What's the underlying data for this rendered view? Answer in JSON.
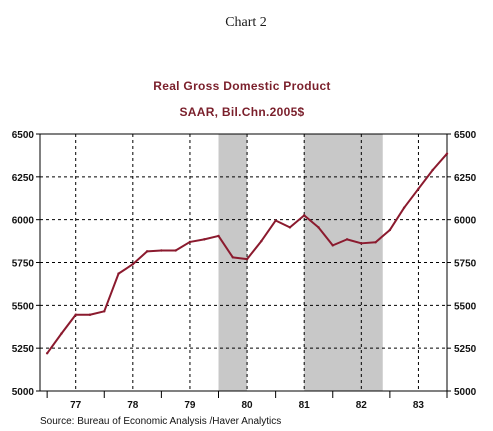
{
  "page": {
    "heading": "Chart 2",
    "source": "Source:  Bureau of Economic Analysis /Haver Analytics"
  },
  "chart_data": {
    "type": "line",
    "title": "Real Gross Domestic Product",
    "subtitle": "SAAR, Bil.Chn.2005$",
    "xlabel": "",
    "ylabel": "",
    "x_tick_labels": [
      "77",
      "78",
      "79",
      "80",
      "81",
      "82",
      "83"
    ],
    "y_ticks": [
      5000,
      5250,
      5500,
      5750,
      6000,
      6250,
      6500
    ],
    "y_tick_labels": [
      "5000",
      "5250",
      "5500",
      "5750",
      "6000",
      "6250",
      "6500"
    ],
    "xlim": [
      1976.875,
      1984.0
    ],
    "ylim": [
      5000,
      6500
    ],
    "grid": true,
    "legend": "none",
    "recession_bands": [
      {
        "start": 1980.0,
        "end": 1980.5
      },
      {
        "start": 1981.5,
        "end": 1982.875
      }
    ],
    "series": [
      {
        "color": "#8b1a2e",
        "points": [
          {
            "x": "1977 Q1",
            "y": 5220
          },
          {
            "x": "1977 Q2",
            "y": 5335
          },
          {
            "x": "1977 Q3",
            "y": 5445
          },
          {
            "x": "1977 Q4",
            "y": 5445
          },
          {
            "x": "1978 Q1",
            "y": 5465
          },
          {
            "x": "1978 Q2",
            "y": 5685
          },
          {
            "x": "1978 Q3",
            "y": 5740
          },
          {
            "x": "1978 Q4",
            "y": 5815
          },
          {
            "x": "1979 Q1",
            "y": 5820
          },
          {
            "x": "1979 Q2",
            "y": 5820
          },
          {
            "x": "1979 Q3",
            "y": 5870
          },
          {
            "x": "1979 Q4",
            "y": 5885
          },
          {
            "x": "1980 Q1",
            "y": 5905
          },
          {
            "x": "1980 Q2",
            "y": 5780
          },
          {
            "x": "1980 Q3",
            "y": 5770
          },
          {
            "x": "1980 Q4",
            "y": 5875
          },
          {
            "x": "1981 Q1",
            "y": 5995
          },
          {
            "x": "1981 Q2",
            "y": 5955
          },
          {
            "x": "1981 Q3",
            "y": 6025
          },
          {
            "x": "1981 Q4",
            "y": 5955
          },
          {
            "x": "1982 Q1",
            "y": 5850
          },
          {
            "x": "1982 Q2",
            "y": 5885
          },
          {
            "x": "1982 Q3",
            "y": 5862
          },
          {
            "x": "1982 Q4",
            "y": 5868
          },
          {
            "x": "1983 Q1",
            "y": 5940
          },
          {
            "x": "1983 Q2",
            "y": 6070
          },
          {
            "x": "1983 Q3",
            "y": 6180
          },
          {
            "x": "1983 Q4",
            "y": 6290
          },
          {
            "x": "1984 Q1",
            "y": 6385
          }
        ]
      }
    ]
  }
}
